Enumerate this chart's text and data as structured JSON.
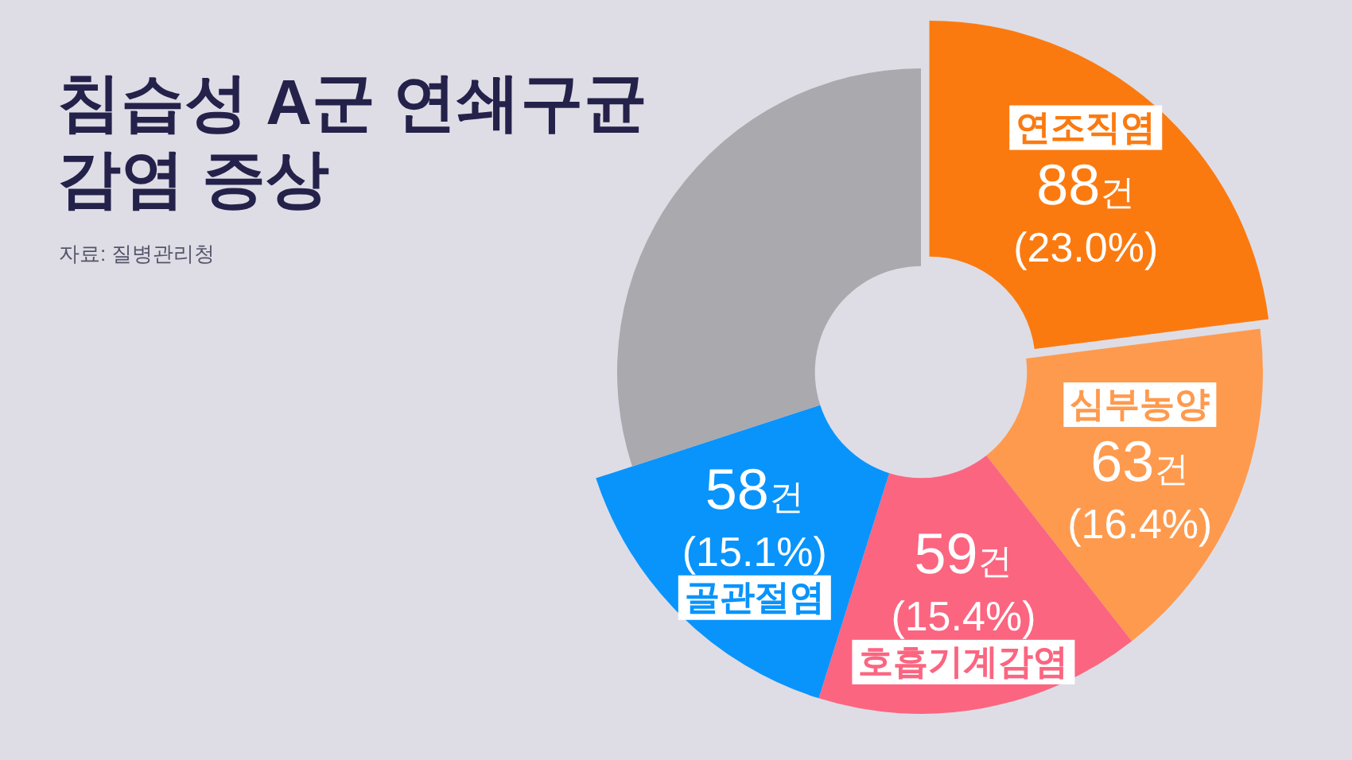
{
  "chart_data": {
    "type": "donut",
    "title": "침습성 A군 연쇄구균\n감염 증상",
    "annotations": [
      "자료: 질병관리청"
    ],
    "categories": [
      "연조직염",
      "심부농양",
      "호흡기계감염",
      "골관절염",
      null
    ],
    "values": [
      88,
      63,
      59,
      58,
      115
    ],
    "colors": [
      "#fb7a10",
      "#fe9a4e",
      "#fb6580",
      "#0994fc",
      "#a9a9ae"
    ],
    "value_labels": [
      "88건\n(23.0%)",
      "63건\n(16.4%)",
      "59건\n(15.4%)",
      "58건\n(15.1%)",
      null
    ]
  }
}
